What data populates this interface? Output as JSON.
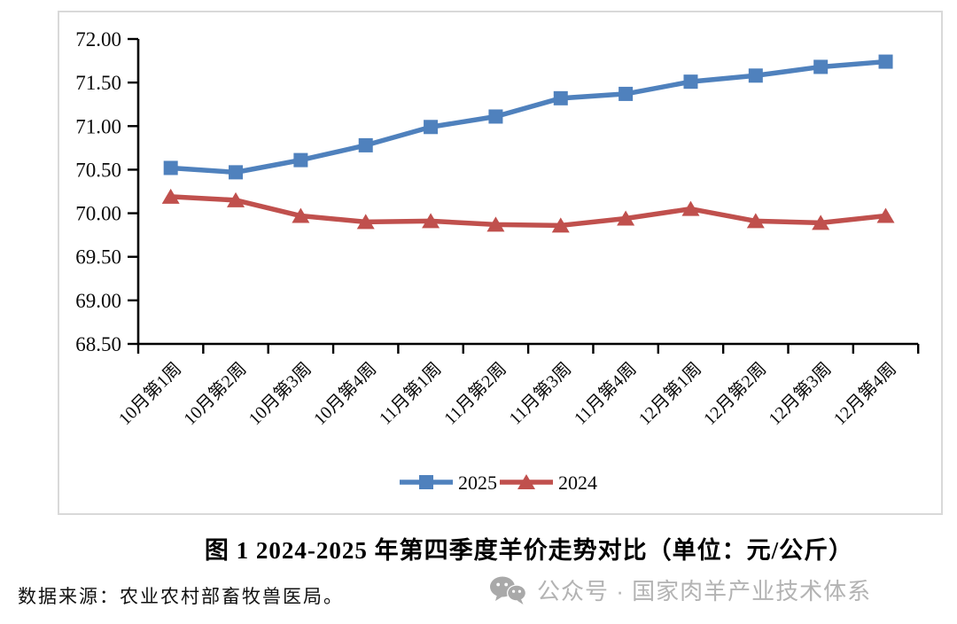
{
  "chart_data": {
    "type": "line",
    "title": "图1 2024-2025年第四季度羊价走势对比",
    "unit": "元/公斤",
    "categories": [
      "10月第1周",
      "10月第2周",
      "10月第3周",
      "10月第4周",
      "11月第1周",
      "11月第2周",
      "11月第3周",
      "11月第4周",
      "12月第1周",
      "12月第2周",
      "12月第3周",
      "12月第4周"
    ],
    "series": [
      {
        "name": "2025",
        "color": "#4F81BD",
        "marker": "square",
        "values": [
          70.52,
          70.47,
          70.61,
          70.78,
          70.99,
          71.11,
          71.32,
          71.37,
          71.51,
          71.58,
          71.68,
          71.74
        ]
      },
      {
        "name": "2024",
        "color": "#C0504D",
        "marker": "triangle",
        "values": [
          70.19,
          70.15,
          69.97,
          69.9,
          69.91,
          69.87,
          69.86,
          69.94,
          70.05,
          69.91,
          69.89,
          69.97
        ]
      }
    ],
    "ylim": [
      68.5,
      72.0
    ],
    "ytick_step": 0.5,
    "yticks": [
      "72.00",
      "71.50",
      "71.00",
      "70.50",
      "70.00",
      "69.50",
      "69.00",
      "68.50"
    ],
    "grid": false,
    "legend_position": "bottom-center",
    "xlabel": "",
    "ylabel": ""
  },
  "caption": {
    "text": "图 1  2024-2025 年第四季度羊价走势对比（单位：元/公斤）"
  },
  "footer": {
    "source": "数据来源：农业农村部畜牧兽医局。",
    "watermark": "公众号 · 国家肉羊产业技术体系"
  },
  "colors": {
    "series_2025": "#4F81BD",
    "series_2024": "#C0504D",
    "axis": "#000000",
    "box_border": "#d9d9d9",
    "watermark_gray": "#b3b3b3"
  },
  "icons": {
    "watermark_icon": "wechat-icon"
  }
}
